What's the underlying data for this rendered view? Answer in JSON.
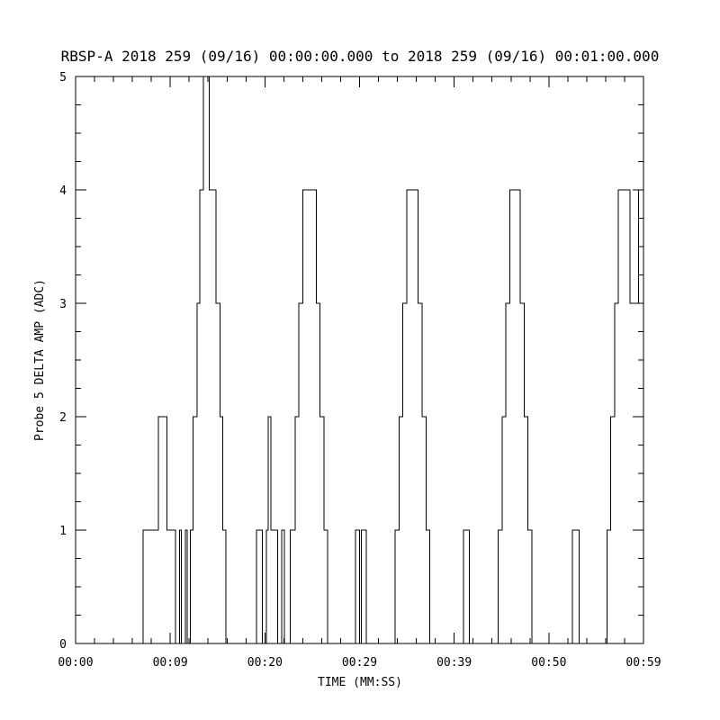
{
  "title": "RBSP-A 2018 259 (09/16) 00:00:00.000 to 2018 259 (09/16) 00:01:00.000",
  "colors": {
    "foreground": "#000000",
    "background": "#ffffff"
  },
  "chart_data": {
    "type": "line",
    "line_style": "step",
    "title": "RBSP-A 2018 259 (09/16) 00:00:00.000 to 2018 259 (09/16) 00:01:00.000",
    "xlabel": "TIME (MM:SS)",
    "ylabel": "Probe 5 DELTA AMP (ADC)",
    "xlim": [
      0,
      59
    ],
    "ylim": [
      0,
      5
    ],
    "grid": false,
    "legend": "none",
    "x_ticks": [
      {
        "t": 0,
        "label": "00:00"
      },
      {
        "t": 9.833,
        "label": "00:09"
      },
      {
        "t": 19.667,
        "label": "00:20"
      },
      {
        "t": 29.5,
        "label": "00:29"
      },
      {
        "t": 39.333,
        "label": "00:39"
      },
      {
        "t": 49.167,
        "label": "00:50"
      },
      {
        "t": 59,
        "label": "00:59"
      }
    ],
    "x_minor_divisions": 5,
    "y_ticks": [
      {
        "v": 0,
        "label": "0"
      },
      {
        "v": 1,
        "label": "1"
      },
      {
        "v": 2,
        "label": "2"
      },
      {
        "v": 3,
        "label": "3"
      },
      {
        "v": 4,
        "label": "4"
      },
      {
        "v": 5,
        "label": "5"
      }
    ],
    "y_minor_step": 0.25,
    "series_name": "Probe 5 DELTA AMP",
    "steps": [
      [
        0.0,
        0
      ],
      [
        7.0,
        1
      ],
      [
        8.6,
        2
      ],
      [
        9.5,
        1
      ],
      [
        10.4,
        0
      ],
      [
        10.8,
        1
      ],
      [
        11.0,
        0
      ],
      [
        11.4,
        1
      ],
      [
        11.6,
        0
      ],
      [
        11.9,
        1
      ],
      [
        12.2,
        2
      ],
      [
        12.6,
        3
      ],
      [
        12.9,
        4
      ],
      [
        13.3,
        5
      ],
      [
        13.9,
        4
      ],
      [
        14.6,
        3
      ],
      [
        15.0,
        2
      ],
      [
        15.3,
        1
      ],
      [
        15.6,
        0
      ],
      [
        18.8,
        1
      ],
      [
        19.4,
        0
      ],
      [
        19.8,
        1
      ],
      [
        20.0,
        2
      ],
      [
        20.3,
        1
      ],
      [
        21.0,
        0
      ],
      [
        21.4,
        1
      ],
      [
        21.7,
        0
      ],
      [
        22.3,
        1
      ],
      [
        22.8,
        2
      ],
      [
        23.2,
        3
      ],
      [
        23.6,
        4
      ],
      [
        25.0,
        3
      ],
      [
        25.4,
        2
      ],
      [
        25.8,
        1
      ],
      [
        26.2,
        0
      ],
      [
        29.1,
        1
      ],
      [
        29.5,
        0
      ],
      [
        29.7,
        1
      ],
      [
        30.2,
        0
      ],
      [
        33.2,
        1
      ],
      [
        33.6,
        2
      ],
      [
        34.0,
        3
      ],
      [
        34.4,
        4
      ],
      [
        35.6,
        3
      ],
      [
        36.0,
        2
      ],
      [
        36.4,
        1
      ],
      [
        36.8,
        0
      ],
      [
        40.3,
        1
      ],
      [
        40.9,
        0
      ],
      [
        43.9,
        1
      ],
      [
        44.3,
        2
      ],
      [
        44.7,
        3
      ],
      [
        45.1,
        4
      ],
      [
        46.2,
        3
      ],
      [
        46.6,
        2
      ],
      [
        47.0,
        1
      ],
      [
        47.4,
        0
      ],
      [
        51.6,
        1
      ],
      [
        52.3,
        0
      ],
      [
        55.2,
        1
      ],
      [
        55.6,
        2
      ],
      [
        56.0,
        3
      ],
      [
        56.4,
        4
      ],
      [
        57.6,
        3
      ],
      [
        58.5,
        4
      ]
    ]
  }
}
